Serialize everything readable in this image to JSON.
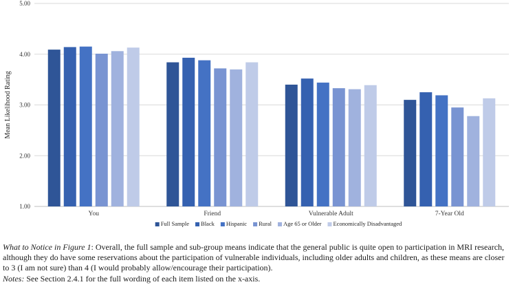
{
  "chart_data": {
    "type": "bar",
    "ylabel": "Mean Likelihood Rating",
    "xlabel": "",
    "ylim": [
      1.0,
      5.0
    ],
    "yticks": [
      "1.00",
      "2.00",
      "3.00",
      "4.00",
      "5.00"
    ],
    "grid": true,
    "legend_position": "bottom",
    "categories": [
      "You",
      "Friend",
      "Vulnerable Adult",
      "7-Year Old"
    ],
    "series": [
      {
        "name": "Full Sample",
        "color": "#2f5597",
        "values": [
          4.09,
          3.84,
          3.4,
          3.1
        ]
      },
      {
        "name": "Black",
        "color": "#3561b0",
        "values": [
          4.14,
          3.93,
          3.52,
          3.25
        ]
      },
      {
        "name": "Hispanic",
        "color": "#4472c4",
        "values": [
          4.15,
          3.88,
          3.44,
          3.19
        ]
      },
      {
        "name": "Rural",
        "color": "#7994d2",
        "values": [
          4.01,
          3.72,
          3.33,
          2.95
        ]
      },
      {
        "name": "Age 65 or Older",
        "color": "#a0b2de",
        "values": [
          4.06,
          3.7,
          3.31,
          2.78
        ]
      },
      {
        "name": "Economically Disadvantaged",
        "color": "#bfcbe8",
        "values": [
          4.13,
          3.84,
          3.39,
          3.13
        ]
      }
    ]
  },
  "caption": {
    "lead": "What to Notice in Figure 1",
    "body": ": Overall, the full sample and sub-group means indicate that the general public is quite open to participation in MRI research, although they do have some reservations about the participation of vulnerable individuals, including older adults and children, as these means are closer to 3 (I am not sure) than 4 (I would probably allow/encourage their participation).",
    "notes_label": "Notes:",
    "notes_text": " See Section 2.4.1 for the full wording of each item listed on the x-axis."
  }
}
